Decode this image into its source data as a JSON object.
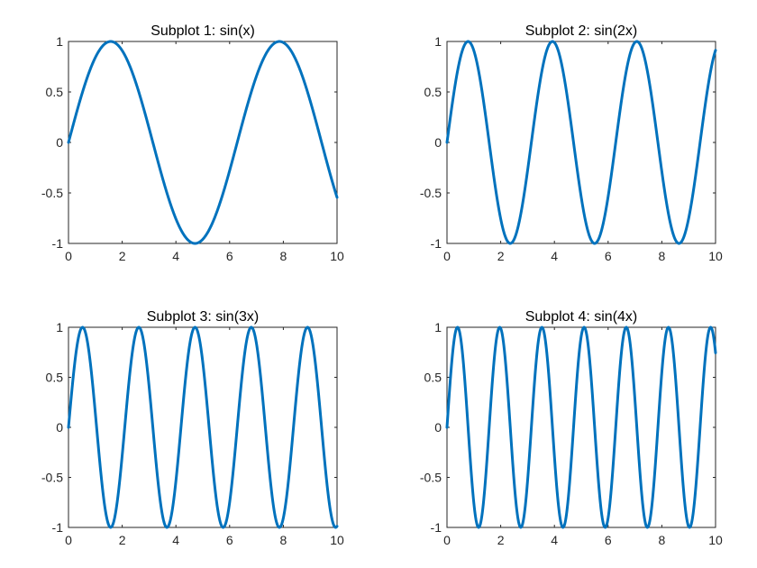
{
  "chart_data": [
    {
      "type": "line",
      "title": "Subplot 1: sin(x)",
      "xlabel": "",
      "ylabel": "",
      "xlim": [
        0,
        10
      ],
      "ylim": [
        -1,
        1
      ],
      "xticks": [
        0,
        2,
        4,
        6,
        8,
        10
      ],
      "yticks": [
        -1,
        -0.5,
        0,
        0.5,
        1
      ],
      "xtick_labels": [
        "0",
        "2",
        "4",
        "6",
        "8",
        "10"
      ],
      "ytick_labels": [
        "-1",
        "-0.5",
        "0",
        "0.5",
        "1"
      ],
      "grid": false,
      "series": [
        {
          "function": "sin(1x)",
          "frequency": 1,
          "x_range": [
            0,
            10
          ],
          "color": "#0072BD"
        }
      ]
    },
    {
      "type": "line",
      "title": "Subplot 2: sin(2x)",
      "xlabel": "",
      "ylabel": "",
      "xlim": [
        0,
        10
      ],
      "ylim": [
        -1,
        1
      ],
      "xticks": [
        0,
        2,
        4,
        6,
        8,
        10
      ],
      "yticks": [
        -1,
        -0.5,
        0,
        0.5,
        1
      ],
      "xtick_labels": [
        "0",
        "2",
        "4",
        "6",
        "8",
        "10"
      ],
      "ytick_labels": [
        "-1",
        "-0.5",
        "0",
        "0.5",
        "1"
      ],
      "grid": false,
      "series": [
        {
          "function": "sin(2x)",
          "frequency": 2,
          "x_range": [
            0,
            10
          ],
          "color": "#0072BD"
        }
      ]
    },
    {
      "type": "line",
      "title": "Subplot 3: sin(3x)",
      "xlabel": "",
      "ylabel": "",
      "xlim": [
        0,
        10
      ],
      "ylim": [
        -1,
        1
      ],
      "xticks": [
        0,
        2,
        4,
        6,
        8,
        10
      ],
      "yticks": [
        -1,
        -0.5,
        0,
        0.5,
        1
      ],
      "xtick_labels": [
        "0",
        "2",
        "4",
        "6",
        "8",
        "10"
      ],
      "ytick_labels": [
        "-1",
        "-0.5",
        "0",
        "0.5",
        "1"
      ],
      "grid": false,
      "series": [
        {
          "function": "sin(3x)",
          "frequency": 3,
          "x_range": [
            0,
            10
          ],
          "color": "#0072BD"
        }
      ]
    },
    {
      "type": "line",
      "title": "Subplot 4: sin(4x)",
      "xlabel": "",
      "ylabel": "",
      "xlim": [
        0,
        10
      ],
      "ylim": [
        -1,
        1
      ],
      "xticks": [
        0,
        2,
        4,
        6,
        8,
        10
      ],
      "yticks": [
        -1,
        -0.5,
        0,
        0.5,
        1
      ],
      "xtick_labels": [
        "0",
        "2",
        "4",
        "6",
        "8",
        "10"
      ],
      "ytick_labels": [
        "-1",
        "-0.5",
        "0",
        "0.5",
        "1"
      ],
      "grid": false,
      "series": [
        {
          "function": "sin(4x)",
          "frequency": 4,
          "x_range": [
            0,
            10
          ],
          "color": "#0072BD"
        }
      ]
    }
  ]
}
